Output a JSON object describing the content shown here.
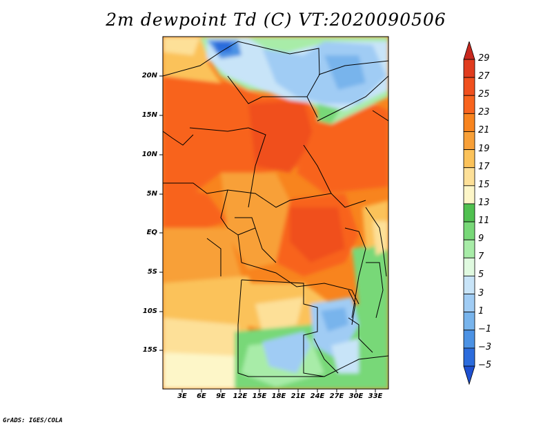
{
  "title": "2m dewpoint Td (C) VT:2020090506",
  "credit": "GrADS: IGES/COLA",
  "map": {
    "lat_ticks": [
      "20N",
      "15N",
      "10N",
      "5N",
      "EQ",
      "5S",
      "10S",
      "15S"
    ],
    "lon_ticks": [
      "3E",
      "6E",
      "9E",
      "12E",
      "15E",
      "18E",
      "21E",
      "24E",
      "27E",
      "30E",
      "33E"
    ]
  },
  "colorbar": {
    "labels": [
      "29",
      "27",
      "25",
      "23",
      "21",
      "19",
      "17",
      "15",
      "13",
      "11",
      "9",
      "7",
      "5",
      "3",
      "1",
      "−1",
      "−3",
      "−5"
    ],
    "colors": [
      "#c8281e",
      "#e03c1e",
      "#f0501e",
      "#f8641e",
      "#f8841e",
      "#f8a038",
      "#fbc25a",
      "#fde098",
      "#fdf6c8",
      "#50c050",
      "#78d878",
      "#a8eca8",
      "#e0fae0",
      "#c8e4f8",
      "#a0ccf4",
      "#78b4ec",
      "#4c92e4",
      "#2c6cdc",
      "#1e50d0"
    ]
  }
}
